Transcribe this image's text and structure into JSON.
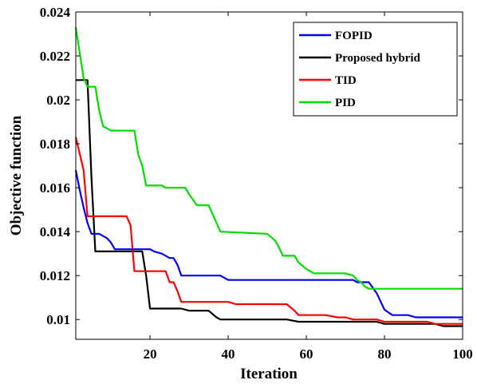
{
  "chart_data": {
    "type": "line",
    "title": "",
    "xlabel": "Iteration",
    "ylabel": "Objective function",
    "xlim": [
      1,
      100
    ],
    "ylim": [
      0.0091,
      0.024
    ],
    "xticks": [
      20,
      40,
      60,
      80,
      100
    ],
    "yticks": [
      0.01,
      0.012,
      0.014,
      0.016,
      0.018,
      0.02,
      0.022,
      0.024
    ],
    "ytick_labels": [
      "0.01",
      "0.012",
      "0.014",
      "0.016",
      "0.018",
      "0.02",
      "0.022",
      "0.024"
    ],
    "grid": false,
    "legend_position": "top-right",
    "series": [
      {
        "name": "FOPID",
        "color": "#0000ff",
        "points": [
          [
            1,
            0.0168
          ],
          [
            2,
            0.0159
          ],
          [
            3,
            0.0151
          ],
          [
            4,
            0.0144
          ],
          [
            5,
            0.0139
          ],
          [
            7,
            0.0139
          ],
          [
            9,
            0.0137
          ],
          [
            10,
            0.0135
          ],
          [
            11,
            0.0132
          ],
          [
            20,
            0.0132
          ],
          [
            21,
            0.0131
          ],
          [
            23,
            0.013
          ],
          [
            25,
            0.0128
          ],
          [
            26,
            0.0128
          ],
          [
            27,
            0.0125
          ],
          [
            28,
            0.012
          ],
          [
            38,
            0.012
          ],
          [
            40,
            0.0118
          ],
          [
            60,
            0.0118
          ],
          [
            72,
            0.0118
          ],
          [
            73,
            0.0117
          ],
          [
            76,
            0.0117
          ],
          [
            78,
            0.0112
          ],
          [
            80,
            0.01045
          ],
          [
            82,
            0.0102
          ],
          [
            86,
            0.0102
          ],
          [
            88,
            0.0101
          ],
          [
            100,
            0.0101
          ]
        ]
      },
      {
        "name": "Proposed hybrid",
        "color": "#000000",
        "points": [
          [
            1,
            0.0209
          ],
          [
            4,
            0.0209
          ],
          [
            5,
            0.0165
          ],
          [
            6,
            0.0131
          ],
          [
            18,
            0.0131
          ],
          [
            19,
            0.012
          ],
          [
            20,
            0.0105
          ],
          [
            28,
            0.0105
          ],
          [
            30,
            0.0104
          ],
          [
            35,
            0.0104
          ],
          [
            37,
            0.0101
          ],
          [
            38,
            0.01
          ],
          [
            55,
            0.01
          ],
          [
            58,
            0.0099
          ],
          [
            78,
            0.0099
          ],
          [
            80,
            0.0098
          ],
          [
            82,
            0.0098
          ],
          [
            93,
            0.0098
          ],
          [
            95,
            0.0097
          ],
          [
            100,
            0.0097
          ]
        ]
      },
      {
        "name": "TID",
        "color": "#ff0000",
        "points": [
          [
            1,
            0.0183
          ],
          [
            3,
            0.0168
          ],
          [
            4,
            0.0147
          ],
          [
            14,
            0.0147
          ],
          [
            15,
            0.0143
          ],
          [
            16,
            0.0122
          ],
          [
            24,
            0.0122
          ],
          [
            25,
            0.0117
          ],
          [
            26,
            0.0117
          ],
          [
            27,
            0.0113
          ],
          [
            28,
            0.0108
          ],
          [
            40,
            0.0108
          ],
          [
            42,
            0.0107
          ],
          [
            55,
            0.0107
          ],
          [
            57,
            0.0104
          ],
          [
            58,
            0.0102
          ],
          [
            65,
            0.0102
          ],
          [
            68,
            0.0101
          ],
          [
            70,
            0.0101
          ],
          [
            72,
            0.01
          ],
          [
            78,
            0.01
          ],
          [
            80,
            0.0099
          ],
          [
            91,
            0.0099
          ],
          [
            93,
            0.0098
          ],
          [
            100,
            0.0098
          ]
        ]
      },
      {
        "name": "PID",
        "color": "#00dd00",
        "points": [
          [
            1,
            0.0233
          ],
          [
            3,
            0.021
          ],
          [
            4,
            0.0206
          ],
          [
            6,
            0.0206
          ],
          [
            7,
            0.0195
          ],
          [
            8,
            0.0188
          ],
          [
            9,
            0.0187
          ],
          [
            10,
            0.0186
          ],
          [
            16,
            0.0186
          ],
          [
            17,
            0.0175
          ],
          [
            18,
            0.017
          ],
          [
            19,
            0.0161
          ],
          [
            23,
            0.0161
          ],
          [
            24,
            0.016
          ],
          [
            29,
            0.016
          ],
          [
            30,
            0.0157
          ],
          [
            32,
            0.0152
          ],
          [
            35,
            0.0152
          ],
          [
            37,
            0.0144
          ],
          [
            38,
            0.014
          ],
          [
            50,
            0.0139
          ],
          [
            52,
            0.0136
          ],
          [
            53,
            0.0133
          ],
          [
            54,
            0.0129
          ],
          [
            57,
            0.0129
          ],
          [
            58,
            0.0126
          ],
          [
            60,
            0.0123
          ],
          [
            62,
            0.0121
          ],
          [
            70,
            0.0121
          ],
          [
            72,
            0.012
          ],
          [
            73,
            0.0118
          ],
          [
            74,
            0.0117
          ],
          [
            75,
            0.0115
          ],
          [
            76,
            0.0114
          ],
          [
            100,
            0.0114
          ]
        ]
      }
    ]
  }
}
